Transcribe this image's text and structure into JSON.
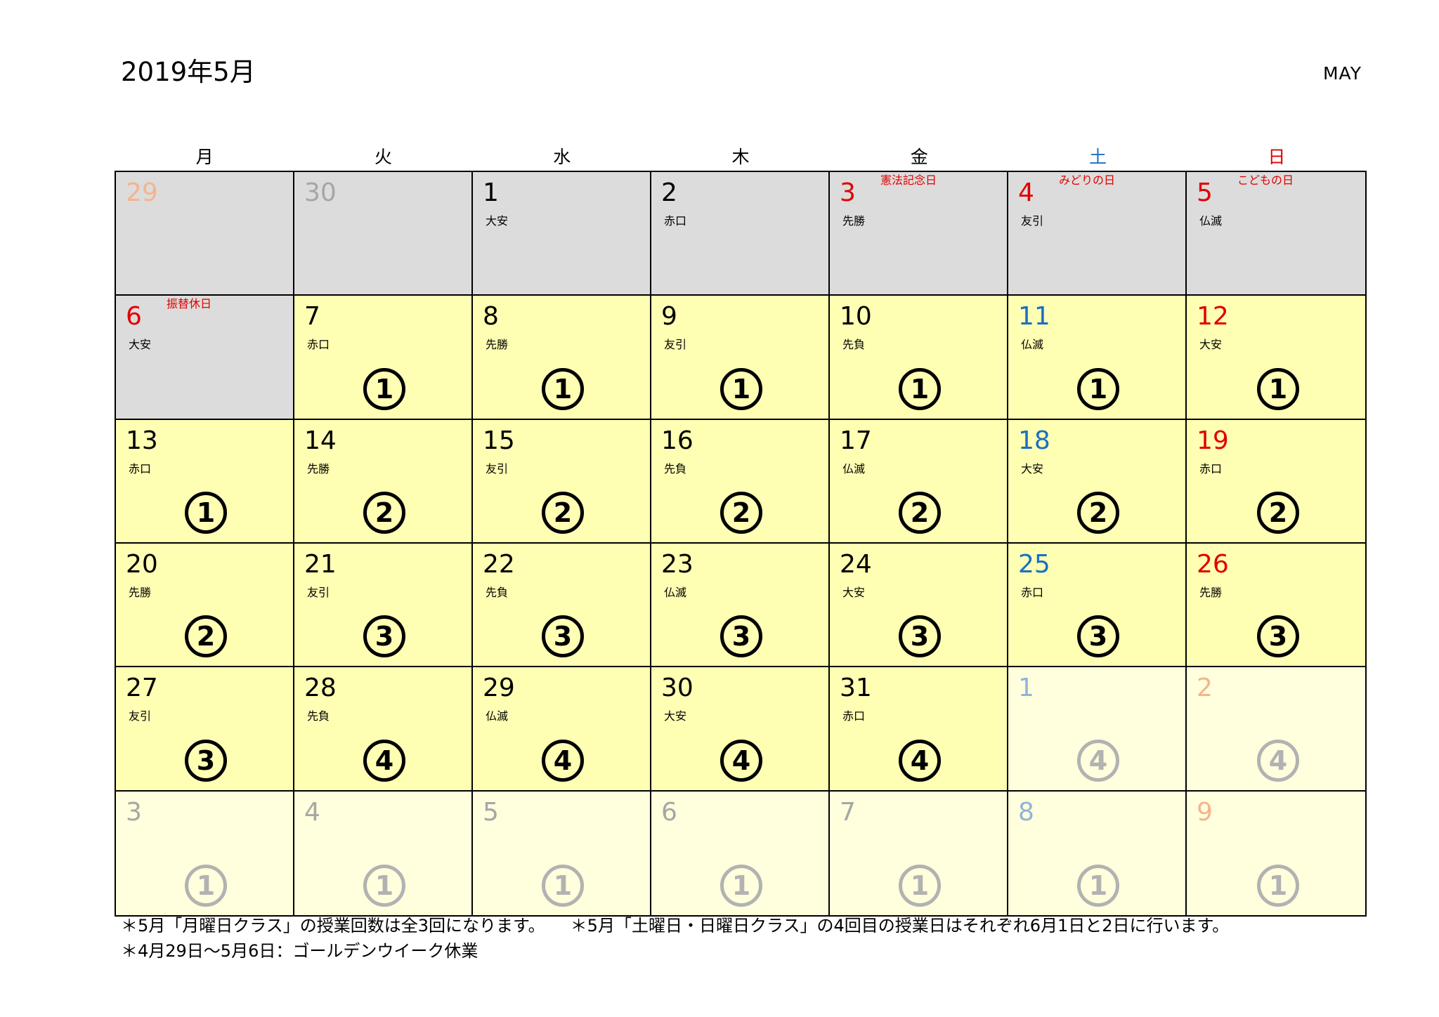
{
  "header": {
    "title": "2019年5月",
    "month_en": "MAY"
  },
  "weekdays": [
    {
      "label": "月",
      "color": "#000000"
    },
    {
      "label": "火",
      "color": "#000000"
    },
    {
      "label": "水",
      "color": "#000000"
    },
    {
      "label": "木",
      "color": "#000000"
    },
    {
      "label": "金",
      "color": "#000000"
    },
    {
      "label": "土",
      "color": "#1a6fc4"
    },
    {
      "label": "日",
      "color": "#e00000"
    }
  ],
  "colors": {
    "black": "#000000",
    "red": "#e00000",
    "blue": "#1a6fc4",
    "gray_text": "#a6a6a6",
    "light_blue": "#8fb4dc",
    "light_orange": "#f5b48c",
    "gray_bg": "#dcdcdc",
    "yellow_bg": "#ffffb3",
    "pale_bg": "#ffffdd"
  },
  "days": [
    {
      "date": "29",
      "color": "#f5b48c",
      "bg": "gray"
    },
    {
      "date": "30",
      "color": "#a6a6a6",
      "bg": "gray"
    },
    {
      "date": "1",
      "color": "#000000",
      "bg": "gray",
      "rokuyo": "大安"
    },
    {
      "date": "2",
      "color": "#000000",
      "bg": "gray",
      "rokuyo": "赤口"
    },
    {
      "date": "3",
      "color": "#e00000",
      "bg": "gray",
      "rokuyo": "先勝",
      "holiday": "憲法記念日"
    },
    {
      "date": "4",
      "color": "#e00000",
      "bg": "gray",
      "rokuyo": "友引",
      "holiday": "みどりの日"
    },
    {
      "date": "5",
      "color": "#e00000",
      "bg": "gray",
      "rokuyo": "仏滅",
      "holiday": "こどもの日"
    },
    {
      "date": "6",
      "color": "#e00000",
      "bg": "gray",
      "rokuyo": "大安",
      "holiday": "振替休日"
    },
    {
      "date": "7",
      "color": "#000000",
      "bg": "yellow",
      "rokuyo": "赤口",
      "lesson": "1"
    },
    {
      "date": "8",
      "color": "#000000",
      "bg": "yellow",
      "rokuyo": "先勝",
      "lesson": "1"
    },
    {
      "date": "9",
      "color": "#000000",
      "bg": "yellow",
      "rokuyo": "友引",
      "lesson": "1"
    },
    {
      "date": "10",
      "color": "#000000",
      "bg": "yellow",
      "rokuyo": "先負",
      "lesson": "1"
    },
    {
      "date": "11",
      "color": "#1a6fc4",
      "bg": "yellow",
      "rokuyo": "仏滅",
      "lesson": "1"
    },
    {
      "date": "12",
      "color": "#e00000",
      "bg": "yellow",
      "rokuyo": "大安",
      "lesson": "1"
    },
    {
      "date": "13",
      "color": "#000000",
      "bg": "yellow",
      "rokuyo": "赤口",
      "lesson": "1"
    },
    {
      "date": "14",
      "color": "#000000",
      "bg": "yellow",
      "rokuyo": "先勝",
      "lesson": "2"
    },
    {
      "date": "15",
      "color": "#000000",
      "bg": "yellow",
      "rokuyo": "友引",
      "lesson": "2"
    },
    {
      "date": "16",
      "color": "#000000",
      "bg": "yellow",
      "rokuyo": "先負",
      "lesson": "2"
    },
    {
      "date": "17",
      "color": "#000000",
      "bg": "yellow",
      "rokuyo": "仏滅",
      "lesson": "2"
    },
    {
      "date": "18",
      "color": "#1a6fc4",
      "bg": "yellow",
      "rokuyo": "大安",
      "lesson": "2"
    },
    {
      "date": "19",
      "color": "#e00000",
      "bg": "yellow",
      "rokuyo": "赤口",
      "lesson": "2"
    },
    {
      "date": "20",
      "color": "#000000",
      "bg": "yellow",
      "rokuyo": "先勝",
      "lesson": "2"
    },
    {
      "date": "21",
      "color": "#000000",
      "bg": "yellow",
      "rokuyo": "友引",
      "lesson": "3"
    },
    {
      "date": "22",
      "color": "#000000",
      "bg": "yellow",
      "rokuyo": "先負",
      "lesson": "3"
    },
    {
      "date": "23",
      "color": "#000000",
      "bg": "yellow",
      "rokuyo": "仏滅",
      "lesson": "3"
    },
    {
      "date": "24",
      "color": "#000000",
      "bg": "yellow",
      "rokuyo": "大安",
      "lesson": "3"
    },
    {
      "date": "25",
      "color": "#1a6fc4",
      "bg": "yellow",
      "rokuyo": "赤口",
      "lesson": "3"
    },
    {
      "date": "26",
      "color": "#e00000",
      "bg": "yellow",
      "rokuyo": "先勝",
      "lesson": "3"
    },
    {
      "date": "27",
      "color": "#000000",
      "bg": "yellow",
      "rokuyo": "友引",
      "lesson": "3"
    },
    {
      "date": "28",
      "color": "#000000",
      "bg": "yellow",
      "rokuyo": "先負",
      "lesson": "4"
    },
    {
      "date": "29",
      "color": "#000000",
      "bg": "yellow",
      "rokuyo": "仏滅",
      "lesson": "4"
    },
    {
      "date": "30",
      "color": "#000000",
      "bg": "yellow",
      "rokuyo": "大安",
      "lesson": "4"
    },
    {
      "date": "31",
      "color": "#000000",
      "bg": "yellow",
      "rokuyo": "赤口",
      "lesson": "4"
    },
    {
      "date": "1",
      "color": "#8fb4dc",
      "bg": "pale",
      "lesson": "4",
      "faded": true
    },
    {
      "date": "2",
      "color": "#f5b48c",
      "bg": "pale",
      "lesson": "4",
      "faded": true
    },
    {
      "date": "3",
      "color": "#a6a6a6",
      "bg": "pale",
      "lesson": "1",
      "faded": true
    },
    {
      "date": "4",
      "color": "#a6a6a6",
      "bg": "pale",
      "lesson": "1",
      "faded": true
    },
    {
      "date": "5",
      "color": "#a6a6a6",
      "bg": "pale",
      "lesson": "1",
      "faded": true
    },
    {
      "date": "6",
      "color": "#a6a6a6",
      "bg": "pale",
      "lesson": "1",
      "faded": true
    },
    {
      "date": "7",
      "color": "#a6a6a6",
      "bg": "pale",
      "lesson": "1",
      "faded": true
    },
    {
      "date": "8",
      "color": "#8fb4dc",
      "bg": "pale",
      "lesson": "1",
      "faded": true
    },
    {
      "date": "9",
      "color": "#f5b48c",
      "bg": "pale",
      "lesson": "1",
      "faded": true
    }
  ],
  "notes": {
    "line1_a": "＊5月「月曜日クラス」の授業回数は全3回になります。",
    "line1_b": "＊5月「土曜日・日曜日クラス」の4回目の授業日はそれぞれ6月1日と2日に行います。",
    "line2": "＊4月29日～5月6日：ゴールデンウイーク休業"
  }
}
